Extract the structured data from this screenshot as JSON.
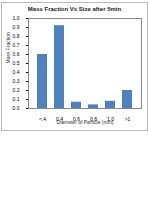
{
  "chart_data": {
    "type": "bar",
    "title": "Mass Fraction Vs Size after 5min",
    "x_label": "Diameter of Particle (mm)",
    "y_label": "Mass Fraction",
    "categories": [
      "<.4",
      "0.4",
      "0.6",
      "0.8",
      "1.0",
      ">1"
    ],
    "values": [
      0.6,
      0.92,
      0.07,
      0.04,
      0.08,
      0.2
    ],
    "color": "#4f81bd",
    "ylim": [
      0,
      1
    ],
    "yticks": [
      0,
      0.1,
      0.2,
      0.3,
      0.4,
      0.5,
      0.6,
      0.7,
      0.8,
      0.9,
      1
    ],
    "grid": false
  }
}
